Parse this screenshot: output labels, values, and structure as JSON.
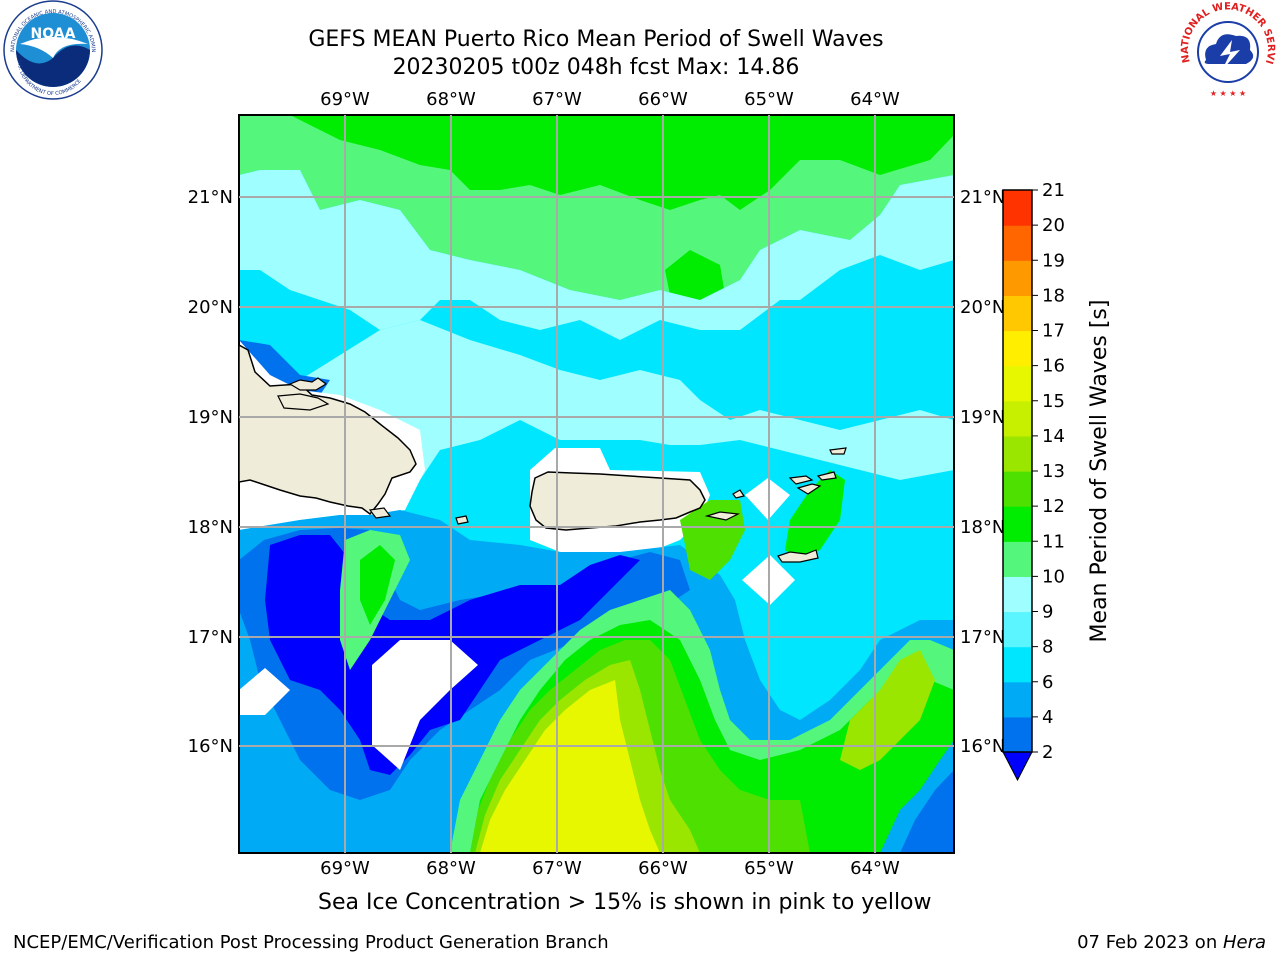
{
  "title": {
    "line1": "GEFS MEAN Puerto Rico Mean Period of Swell Waves",
    "line2": "20230205 t00z 048h fcst   Max: 14.86"
  },
  "map": {
    "lon_labels": [
      "69°W",
      "68°W",
      "67°W",
      "66°W",
      "65°W",
      "64°W"
    ],
    "lat_labels": [
      "21°N",
      "20°N",
      "19°N",
      "18°N",
      "17°N",
      "16°N"
    ]
  },
  "colorbar": {
    "label": "Mean Period of Swell Waves [s]",
    "ticks": [
      "2",
      "4",
      "6",
      "8",
      "9",
      "10",
      "11",
      "12",
      "13",
      "14",
      "15",
      "16",
      "17",
      "18",
      "19",
      "20",
      "21"
    ],
    "colors": [
      "#0000ff",
      "#0072ee",
      "#00aaf5",
      "#00e6ff",
      "#5af5ff",
      "#9ffeff",
      "#55f67c",
      "#00ec00",
      "#4ee000",
      "#9ae600",
      "#c7f000",
      "#e6f700",
      "#ffee00",
      "#ffc800",
      "#ff9900",
      "#ff6600",
      "#ff3300",
      "#ff0000"
    ]
  },
  "caption": "Sea Ice Concentration > 15% is shown in pink to yellow",
  "footer": {
    "left": "NCEP/EMC/Verification Post Processing Product Generation Branch",
    "right_prefix": "07 Feb 2023 on ",
    "right_host": "Hera"
  },
  "logos": {
    "noaa_text": "NOAA",
    "noaa_ring": "NATIONAL OCEANIC AND ATMOSPHERIC ADMINISTRATION",
    "noaa_ring_bottom": "U.S. DEPARTMENT OF COMMERCE",
    "nws_ring": "NATIONAL WEATHER SERVICE"
  }
}
